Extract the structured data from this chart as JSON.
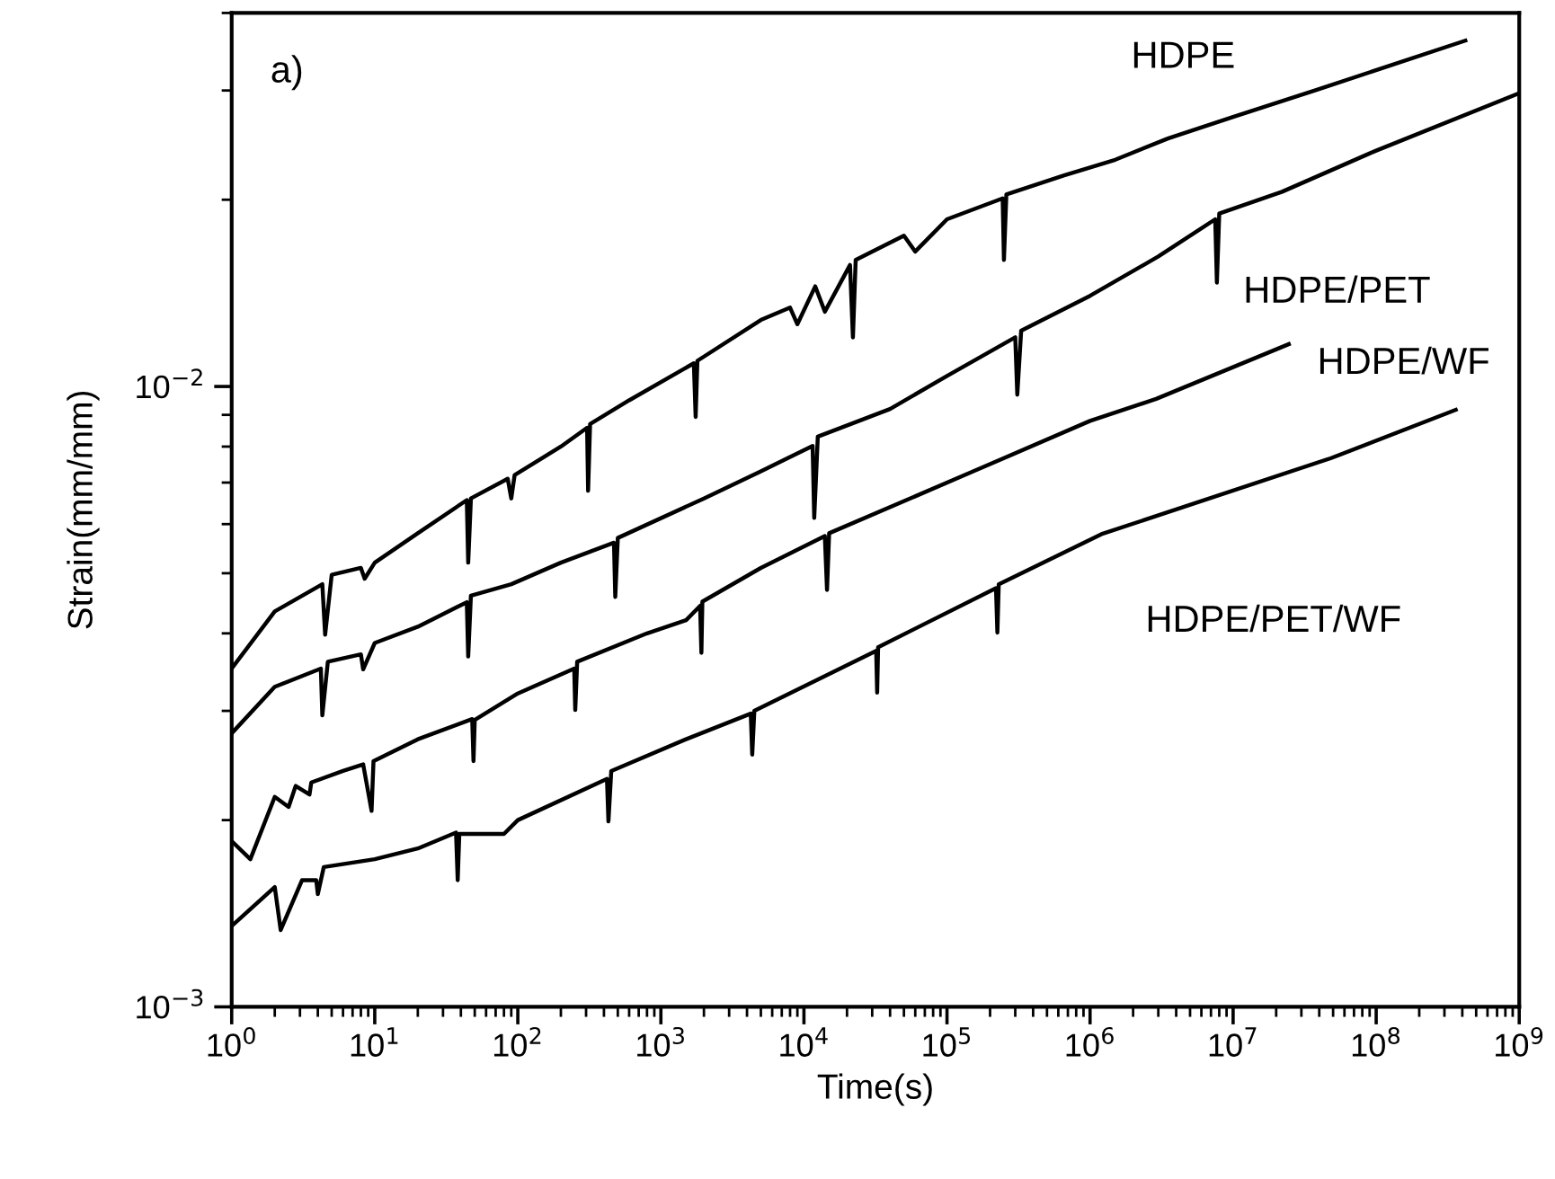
{
  "chart_data": {
    "type": "line",
    "xlabel": "Time(s)",
    "ylabel": "Strain(mm/mm)",
    "log": "xy",
    "grid": false,
    "marker": "none",
    "line_style": "solid",
    "xlim": [
      1,
      1000000000
    ],
    "ylim": [
      0.001,
      0.04
    ],
    "xticks": [
      {
        "value": 1,
        "label": "10$^{0}$"
      },
      {
        "value": 10,
        "label": "10$^{1}$"
      },
      {
        "value": 100,
        "label": "10$^{2}$"
      },
      {
        "value": 1000,
        "label": "10$^{3}$"
      },
      {
        "value": 10000,
        "label": "10$^{4}$"
      },
      {
        "value": 100000,
        "label": "10$^{5}$"
      },
      {
        "value": 1000000,
        "label": "10$^{6}$"
      },
      {
        "value": 10000000,
        "label": "10$^{7}$"
      },
      {
        "value": 100000000,
        "label": "10$^{8}$"
      },
      {
        "value": 1000000000,
        "label": "10$^{9}$"
      }
    ],
    "yticks": [
      {
        "value": 0.001,
        "label": "10$^{−3}$"
      },
      {
        "value": 0.01,
        "label": "10$^{−2}$"
      }
    ],
    "annotations": [
      "a)"
    ],
    "series": [
      {
        "name": "HDPE",
        "color": "#000000",
        "x": [
          1,
          2,
          4.3,
          4.5,
          5,
          8,
          8.5,
          10,
          20,
          44,
          45,
          47,
          85,
          90,
          95,
          200,
          305,
          310,
          320,
          600,
          1700,
          1750,
          1800,
          5000,
          8000,
          9000,
          12000,
          14000,
          21000,
          22000,
          23000,
          50000,
          60000,
          100000,
          245000,
          250000,
          260000,
          660000,
          1500000,
          3500000,
          10000000,
          39000000,
          420000000
        ],
        "values": [
          0.00351,
          0.00434,
          0.0048,
          0.00398,
          0.00497,
          0.0051,
          0.0049,
          0.0052,
          0.0058,
          0.00656,
          0.0052,
          0.0066,
          0.0071,
          0.0066,
          0.0072,
          0.008,
          0.00858,
          0.00679,
          0.0087,
          0.0095,
          0.0109,
          0.00893,
          0.011,
          0.0128,
          0.0134,
          0.0126,
          0.0145,
          0.0132,
          0.0157,
          0.012,
          0.016,
          0.0175,
          0.0165,
          0.0186,
          0.0201,
          0.016,
          0.0204,
          0.0219,
          0.0232,
          0.0251,
          0.0272,
          0.0301,
          0.0361
        ]
      },
      {
        "name": "HDPE/PET",
        "color": "#000000",
        "x": [
          1,
          2,
          4.2,
          4.3,
          4.7,
          8,
          8.3,
          10,
          20,
          44,
          45,
          47,
          90,
          200,
          470,
          480,
          500,
          2000,
          5000,
          11500,
          11800,
          12500,
          40000,
          100000,
          300000,
          310000,
          330000,
          1000000,
          3000000,
          7500000,
          7700000,
          8000000,
          22000000,
          100000000,
          1000000000
        ],
        "values": [
          0.00276,
          0.00328,
          0.00351,
          0.00295,
          0.0036,
          0.0037,
          0.0035,
          0.00386,
          0.0041,
          0.00449,
          0.00367,
          0.0046,
          0.0048,
          0.0052,
          0.0056,
          0.00458,
          0.0057,
          0.0066,
          0.0073,
          0.00802,
          0.00614,
          0.0083,
          0.0092,
          0.0104,
          0.012,
          0.0097,
          0.0123,
          0.014,
          0.0162,
          0.0186,
          0.0147,
          0.019,
          0.0206,
          0.024,
          0.0297
        ]
      },
      {
        "name": "HDPE/WF",
        "color": "#000000",
        "x": [
          1,
          1.35,
          2,
          2.5,
          2.8,
          3.5,
          3.6,
          6,
          8.3,
          9.5,
          9.8,
          20,
          48,
          49,
          50,
          100,
          248,
          252,
          260,
          800,
          1500,
          1880,
          1920,
          1950,
          5000,
          14000,
          14500,
          15000,
          145000,
          1000000,
          2900000,
          24500000
        ],
        "values": [
          0.00185,
          0.00173,
          0.00218,
          0.0021,
          0.00227,
          0.0022,
          0.0023,
          0.0024,
          0.00246,
          0.00207,
          0.00249,
          0.0027,
          0.00291,
          0.00249,
          0.0029,
          0.0032,
          0.00351,
          0.00301,
          0.0036,
          0.004,
          0.0042,
          0.00443,
          0.00372,
          0.0045,
          0.0051,
          0.00574,
          0.0047,
          0.0058,
          0.00726,
          0.0088,
          0.00955,
          0.0117
        ]
      },
      {
        "name": "HDPE/PET/WF",
        "color": "#000000",
        "x": [
          1,
          2,
          2.2,
          3.1,
          3.9,
          4,
          4.4,
          10,
          20,
          37,
          38,
          39,
          80,
          100,
          420,
          430,
          450,
          1500,
          4250,
          4350,
          4500,
          32000,
          32500,
          33000,
          220000,
          225000,
          230000,
          1200000,
          48000000,
          360000000
        ],
        "values": [
          0.00135,
          0.00156,
          0.00133,
          0.0016,
          0.0016,
          0.00152,
          0.00168,
          0.00173,
          0.0018,
          0.00191,
          0.0016,
          0.0019,
          0.0019,
          0.002,
          0.00233,
          0.00199,
          0.0024,
          0.0027,
          0.00297,
          0.00255,
          0.003,
          0.00375,
          0.00321,
          0.0038,
          0.00473,
          0.00401,
          0.0048,
          0.00578,
          0.00766,
          0.00917
        ]
      }
    ]
  }
}
